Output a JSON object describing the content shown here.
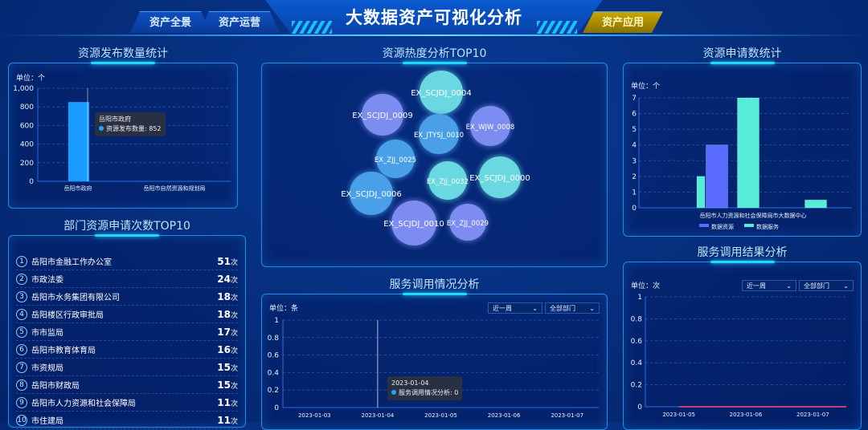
{
  "header": {
    "title": "大数据资产可视化分析",
    "nav": [
      {
        "label": "资产全景"
      },
      {
        "label": "资产运营"
      },
      {
        "label": "资产应用"
      }
    ]
  },
  "release": {
    "title": "资源发布数量统计",
    "unit": "单位：个",
    "tooltip": {
      "name": "岳阳市政府",
      "series": "资源发布数量",
      "value": "852"
    }
  },
  "top10": {
    "title": "部门资源申请次数TOP10",
    "suffix": "次",
    "items": [
      {
        "rank": "1",
        "name": "岳阳市金融工作办公室",
        "count": "51"
      },
      {
        "rank": "2",
        "name": "市政法委",
        "count": "24"
      },
      {
        "rank": "3",
        "name": "岳阳市水务集团有限公司",
        "count": "18"
      },
      {
        "rank": "4",
        "name": "岳阳楼区行政审批局",
        "count": "18"
      },
      {
        "rank": "5",
        "name": "市市监局",
        "count": "17"
      },
      {
        "rank": "6",
        "name": "岳阳市教育体育局",
        "count": "16"
      },
      {
        "rank": "7",
        "name": "市资规局",
        "count": "15"
      },
      {
        "rank": "8",
        "name": "岳阳市财政局",
        "count": "15"
      },
      {
        "rank": "9",
        "name": "岳阳市人力资源和社会保障局",
        "count": "11"
      },
      {
        "rank": "10",
        "name": "市住建局",
        "count": "11"
      }
    ]
  },
  "heat": {
    "title": "资源热度分析TOP10"
  },
  "invoke": {
    "title": "服务调用情况分析",
    "unit": "单位：条",
    "period": "近一周",
    "dept": "全部部门",
    "tooltip": {
      "date": "2023-01-04",
      "series": "服务调用情况分析",
      "value": "0"
    }
  },
  "apply": {
    "title": "资源申请数统计",
    "unit": "单位：个",
    "legend": [
      "数据资源",
      "数据服务"
    ]
  },
  "result": {
    "title": "服务调用结果分析",
    "unit": "单位：次",
    "period": "近一周",
    "dept": "全部部门"
  },
  "chart_data": [
    {
      "type": "bar",
      "title": "资源发布数量统计",
      "ylabel": "单位：个",
      "categories": [
        "岳阳市政府",
        "岳阳市自然资源和规划局"
      ],
      "values": [
        852,
        0
      ],
      "ylim": [
        0,
        1000
      ],
      "yticks": [
        "0",
        "200",
        "400",
        "600",
        "800",
        "1,000"
      ],
      "grid": true,
      "color": "#1a9cff"
    },
    {
      "type": "scatter",
      "title": "资源热度分析TOP10",
      "points": [
        {
          "name": "EX_SCJDJ_0004",
          "color": "#6ad8e0"
        },
        {
          "name": "EX_SCJDJ_0009",
          "color": "#7d8cf0"
        },
        {
          "name": "EX_JTYSJ_0010",
          "color": "#4aa0e8"
        },
        {
          "name": "EX_WJW_0008",
          "color": "#7d8cf0"
        },
        {
          "name": "EX_ZJJ_0025",
          "color": "#4aa0e8"
        },
        {
          "name": "EX_ZJJ_0032",
          "color": "#6ad8e0"
        },
        {
          "name": "EX_SCJDJ_0000",
          "color": "#6ad8e0"
        },
        {
          "name": "EX_SCJDJ_0006",
          "color": "#4aa0e8"
        },
        {
          "name": "EX_SCJDJ_0010",
          "color": "#7d8cf0"
        },
        {
          "name": "EX_ZJJ_0029",
          "color": "#7d8cf0"
        }
      ]
    },
    {
      "type": "bar",
      "title": "资源申请数统计",
      "ylabel": "单位：个",
      "category_label": "岳阳市人力资源和社会保障局市大数据中心",
      "ylim": [
        0,
        7
      ],
      "yticks": [
        "0",
        "1",
        "2",
        "3",
        "4",
        "5",
        "6",
        "7"
      ],
      "grid": true,
      "legend": "bottom",
      "series": [
        {
          "name": "数据资源",
          "color": "#5a6cff",
          "values": [
            4,
            0,
            0
          ]
        },
        {
          "name": "数据服务",
          "color": "#55ecd8",
          "values": [
            2,
            7,
            0.5
          ]
        }
      ]
    },
    {
      "type": "line",
      "title": "服务调用情况分析",
      "ylabel": "单位：条",
      "x": [
        "2023-01-03",
        "2023-01-04",
        "2023-01-05",
        "2023-01-06",
        "2023-01-07"
      ],
      "values": [
        0,
        0,
        0,
        0,
        0
      ],
      "ylim": [
        0,
        1
      ],
      "yticks": [
        "0",
        "0.2",
        "0.4",
        "0.6",
        "0.8",
        "1"
      ],
      "grid": true
    },
    {
      "type": "line",
      "title": "服务调用结果分析",
      "ylabel": "单位：次",
      "x": [
        "2023-01-05",
        "2023-01-06",
        "2023-01-07"
      ],
      "values": [
        0,
        0,
        0
      ],
      "ylim": [
        0,
        1
      ],
      "yticks": [
        "0",
        "0.2",
        "0.4",
        "0.6",
        "0.8",
        "1"
      ],
      "grid": true,
      "color": "#c0407a"
    }
  ]
}
